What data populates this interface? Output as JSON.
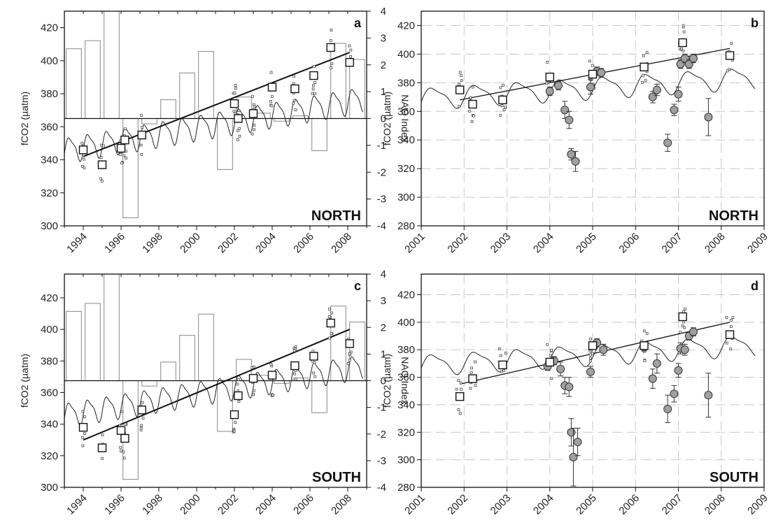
{
  "chart_data": [
    {
      "type": "bar+line+scatter",
      "panel_label": "a",
      "region": "NORTH",
      "ylabel": "fCO2 (µatm)",
      "y2label": "NAO Index",
      "xlim": [
        1993,
        2009
      ],
      "ylim": [
        300,
        430
      ],
      "y2lim": [
        -4,
        4
      ],
      "xticks": [
        "1994",
        "1996",
        "1998",
        "2000",
        "2002",
        "2004",
        "2006",
        "2008"
      ],
      "yticks": [
        300,
        320,
        340,
        360,
        380,
        400,
        420
      ],
      "y2ticks": [
        -4,
        -3,
        -2,
        -1,
        0,
        1,
        2,
        3,
        4
      ],
      "nao": [
        {
          "x": 1993,
          "y": 2.6
        },
        {
          "x": 1994,
          "y": 2.9
        },
        {
          "x": 1995,
          "y": 4.0
        },
        {
          "x": 1996,
          "y": -3.7
        },
        {
          "x": 1997,
          "y": -0.2
        },
        {
          "x": 1998,
          "y": 0.7
        },
        {
          "x": 1999,
          "y": 1.7
        },
        {
          "x": 2000,
          "y": 2.5
        },
        {
          "x": 2001,
          "y": -1.9
        },
        {
          "x": 2002,
          "y": 0.8
        },
        {
          "x": 2003,
          "y": 0.2
        },
        {
          "x": 2004,
          "y": -0.1
        },
        {
          "x": 2005,
          "y": 0.1
        },
        {
          "x": 2006,
          "y": -1.2
        },
        {
          "x": 2007,
          "y": 2.8
        },
        {
          "x": 2008,
          "y": 2.2
        }
      ],
      "atm": {
        "start": 1993,
        "end": 2008.8,
        "base": 346,
        "trend": 1.95,
        "amp": 7
      },
      "obs_means": [
        {
          "x": 1994.0,
          "y": 346
        },
        {
          "x": 1995.0,
          "y": 337
        },
        {
          "x": 1996.0,
          "y": 347
        },
        {
          "x": 1996.2,
          "y": 352
        },
        {
          "x": 1997.1,
          "y": 355
        },
        {
          "x": 2002.0,
          "y": 374
        },
        {
          "x": 2002.2,
          "y": 365
        },
        {
          "x": 2003.0,
          "y": 368
        },
        {
          "x": 2004.0,
          "y": 384
        },
        {
          "x": 2005.2,
          "y": 383
        },
        {
          "x": 2006.2,
          "y": 391
        },
        {
          "x": 2007.1,
          "y": 408
        },
        {
          "x": 2008.1,
          "y": 399
        }
      ],
      "trend_line": [
        {
          "x": 1994.0,
          "y": 342
        },
        {
          "x": 2008.1,
          "y": 405
        }
      ]
    },
    {
      "type": "line+scatter",
      "panel_label": "b",
      "region": "NORTH",
      "ylabel": "fCO2 (µatm)",
      "xlim": [
        2001,
        2009
      ],
      "ylim": [
        280,
        430
      ],
      "xticks": [
        "2001",
        "2002",
        "2003",
        "2004",
        "2005",
        "2006",
        "2007",
        "2008",
        "2009"
      ],
      "yticks": [
        280,
        300,
        320,
        340,
        360,
        380,
        400,
        420
      ],
      "atm": {
        "start": 2001,
        "end": 2008.8,
        "base": 369,
        "trend": 1.9,
        "amp": 7
      },
      "squares": [
        {
          "x": 2001.9,
          "y": 375
        },
        {
          "x": 2002.2,
          "y": 365
        },
        {
          "x": 2002.9,
          "y": 368
        },
        {
          "x": 2004.0,
          "y": 384
        },
        {
          "x": 2005.0,
          "y": 386
        },
        {
          "x": 2006.2,
          "y": 391
        },
        {
          "x": 2007.1,
          "y": 408
        },
        {
          "x": 2008.2,
          "y": 399
        }
      ],
      "circles": [
        {
          "x": 2004.0,
          "y": 374,
          "err": 3
        },
        {
          "x": 2004.2,
          "y": 378,
          "err": 3
        },
        {
          "x": 2004.35,
          "y": 361,
          "err": 6
        },
        {
          "x": 2004.45,
          "y": 354,
          "err": 6
        },
        {
          "x": 2004.5,
          "y": 330,
          "err": 4
        },
        {
          "x": 2004.6,
          "y": 325,
          "err": 7
        },
        {
          "x": 2004.95,
          "y": 377,
          "err": 5
        },
        {
          "x": 2005.1,
          "y": 388,
          "err": 3
        },
        {
          "x": 2005.2,
          "y": 387,
          "err": 3
        },
        {
          "x": 2006.4,
          "y": 370,
          "err": 4
        },
        {
          "x": 2006.5,
          "y": 375,
          "err": 4
        },
        {
          "x": 2006.75,
          "y": 338,
          "err": 6
        },
        {
          "x": 2006.9,
          "y": 361,
          "err": 4
        },
        {
          "x": 2007.0,
          "y": 372,
          "err": 5
        },
        {
          "x": 2007.05,
          "y": 393,
          "err": 3
        },
        {
          "x": 2007.15,
          "y": 397,
          "err": 3
        },
        {
          "x": 2007.25,
          "y": 393,
          "err": 3
        },
        {
          "x": 2007.35,
          "y": 397,
          "err": 3
        },
        {
          "x": 2007.7,
          "y": 356,
          "err": 13
        }
      ],
      "trend_line": [
        {
          "x": 2001.9,
          "y": 368
        },
        {
          "x": 2008.2,
          "y": 404
        }
      ]
    },
    {
      "type": "bar+line+scatter",
      "panel_label": "c",
      "region": "SOUTH",
      "ylabel": "fCO2 (µatm)",
      "y2label": "NAO Index",
      "xlim": [
        1993,
        2009
      ],
      "ylim": [
        300,
        435
      ],
      "y2lim": [
        -4,
        4
      ],
      "xticks": [
        "1994",
        "1996",
        "1998",
        "2000",
        "2002",
        "2004",
        "2006",
        "2008"
      ],
      "yticks": [
        300,
        320,
        340,
        360,
        380,
        400,
        420
      ],
      "y2ticks": [
        -4,
        -3,
        -2,
        -1,
        0,
        1,
        2,
        3,
        4
      ],
      "nao": [
        {
          "x": 1993,
          "y": 2.6
        },
        {
          "x": 1994,
          "y": 2.9
        },
        {
          "x": 1995,
          "y": 4.0
        },
        {
          "x": 1996,
          "y": -3.7
        },
        {
          "x": 1997,
          "y": -0.2
        },
        {
          "x": 1998,
          "y": 0.7
        },
        {
          "x": 1999,
          "y": 1.7
        },
        {
          "x": 2000,
          "y": 2.5
        },
        {
          "x": 2001,
          "y": -1.9
        },
        {
          "x": 2002,
          "y": 0.8
        },
        {
          "x": 2003,
          "y": 0.2
        },
        {
          "x": 2004,
          "y": -0.1
        },
        {
          "x": 2005,
          "y": 0.1
        },
        {
          "x": 2006,
          "y": -1.2
        },
        {
          "x": 2007,
          "y": 2.8
        },
        {
          "x": 2008,
          "y": 2.2
        }
      ],
      "atm": {
        "start": 1993,
        "end": 2008.8,
        "base": 346,
        "trend": 1.95,
        "amp": 7
      },
      "obs_means": [
        {
          "x": 1994.0,
          "y": 338
        },
        {
          "x": 1995.0,
          "y": 325
        },
        {
          "x": 1996.0,
          "y": 336
        },
        {
          "x": 1996.2,
          "y": 331
        },
        {
          "x": 1997.1,
          "y": 349
        },
        {
          "x": 2002.0,
          "y": 346
        },
        {
          "x": 2002.2,
          "y": 358
        },
        {
          "x": 2003.0,
          "y": 369
        },
        {
          "x": 2004.0,
          "y": 371
        },
        {
          "x": 2005.2,
          "y": 377
        },
        {
          "x": 2006.2,
          "y": 383
        },
        {
          "x": 2007.1,
          "y": 404
        },
        {
          "x": 2008.1,
          "y": 391
        }
      ],
      "trend_line": [
        {
          "x": 1994.0,
          "y": 330
        },
        {
          "x": 2008.1,
          "y": 400
        }
      ]
    },
    {
      "type": "line+scatter",
      "panel_label": "d",
      "region": "SOUTH",
      "ylabel": "fCO2 (µatm)",
      "xlim": [
        2001,
        2009
      ],
      "ylim": [
        280,
        435
      ],
      "xticks": [
        "2001",
        "2002",
        "2003",
        "2004",
        "2005",
        "2006",
        "2007",
        "2008",
        "2009"
      ],
      "yticks": [
        280,
        300,
        320,
        340,
        360,
        380,
        400,
        420
      ],
      "atm": {
        "start": 2001,
        "end": 2008.8,
        "base": 369,
        "trend": 1.9,
        "amp": 7
      },
      "squares": [
        {
          "x": 2001.9,
          "y": 346
        },
        {
          "x": 2002.2,
          "y": 359
        },
        {
          "x": 2002.9,
          "y": 369
        },
        {
          "x": 2004.0,
          "y": 371
        },
        {
          "x": 2005.0,
          "y": 383
        },
        {
          "x": 2006.2,
          "y": 383
        },
        {
          "x": 2007.1,
          "y": 404
        },
        {
          "x": 2008.2,
          "y": 391
        }
      ],
      "circles": [
        {
          "x": 2003.95,
          "y": 368,
          "err": 3
        },
        {
          "x": 2004.1,
          "y": 372,
          "err": 3
        },
        {
          "x": 2004.25,
          "y": 366,
          "err": 5
        },
        {
          "x": 2004.35,
          "y": 354,
          "err": 6
        },
        {
          "x": 2004.45,
          "y": 353,
          "err": 7
        },
        {
          "x": 2004.5,
          "y": 320,
          "err": 10
        },
        {
          "x": 2004.55,
          "y": 302,
          "err": 21
        },
        {
          "x": 2004.65,
          "y": 313,
          "err": 10
        },
        {
          "x": 2004.95,
          "y": 364,
          "err": 4
        },
        {
          "x": 2005.1,
          "y": 385,
          "err": 3
        },
        {
          "x": 2005.25,
          "y": 380,
          "err": 4
        },
        {
          "x": 2006.2,
          "y": 382,
          "err": 3
        },
        {
          "x": 2006.4,
          "y": 359,
          "err": 7
        },
        {
          "x": 2006.5,
          "y": 370,
          "err": 7
        },
        {
          "x": 2006.75,
          "y": 337,
          "err": 10
        },
        {
          "x": 2006.9,
          "y": 348,
          "err": 6
        },
        {
          "x": 2007.0,
          "y": 365,
          "err": 5
        },
        {
          "x": 2007.05,
          "y": 381,
          "err": 4
        },
        {
          "x": 2007.15,
          "y": 380,
          "err": 4
        },
        {
          "x": 2007.25,
          "y": 390,
          "err": 3
        },
        {
          "x": 2007.35,
          "y": 393,
          "err": 3
        },
        {
          "x": 2007.7,
          "y": 347,
          "err": 16
        }
      ],
      "trend_line": [
        {
          "x": 2001.9,
          "y": 355
        },
        {
          "x": 2008.2,
          "y": 400
        }
      ]
    }
  ]
}
